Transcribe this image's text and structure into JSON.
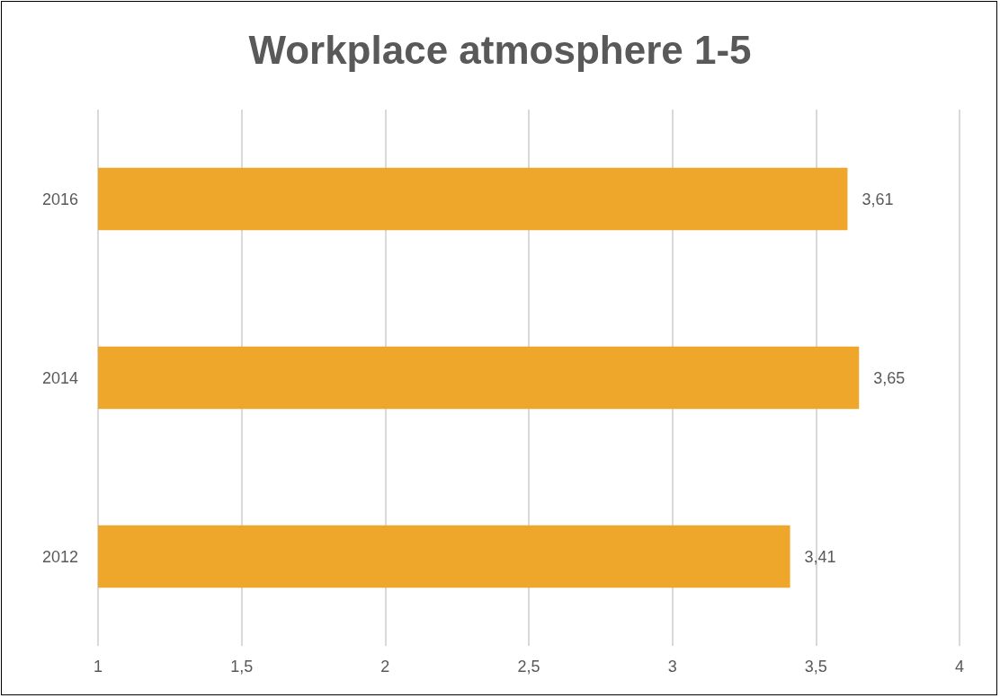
{
  "chart_data": {
    "type": "bar",
    "orientation": "horizontal",
    "title": "Workplace atmosphere 1-5",
    "categories": [
      "2016",
      "2014",
      "2012"
    ],
    "values": [
      3.61,
      3.65,
      3.41
    ],
    "value_labels": [
      "3,61",
      "3,65",
      "3,41"
    ],
    "color": "#eea62b",
    "xlim": [
      1,
      4
    ],
    "xticks": [
      1,
      {
        "value": 1.5,
        "label": "1,5"
      },
      2,
      {
        "value": 2.5,
        "label": "2,5"
      },
      3,
      {
        "value": 3.5,
        "label": "3,5"
      },
      4
    ],
    "grid": "x"
  }
}
